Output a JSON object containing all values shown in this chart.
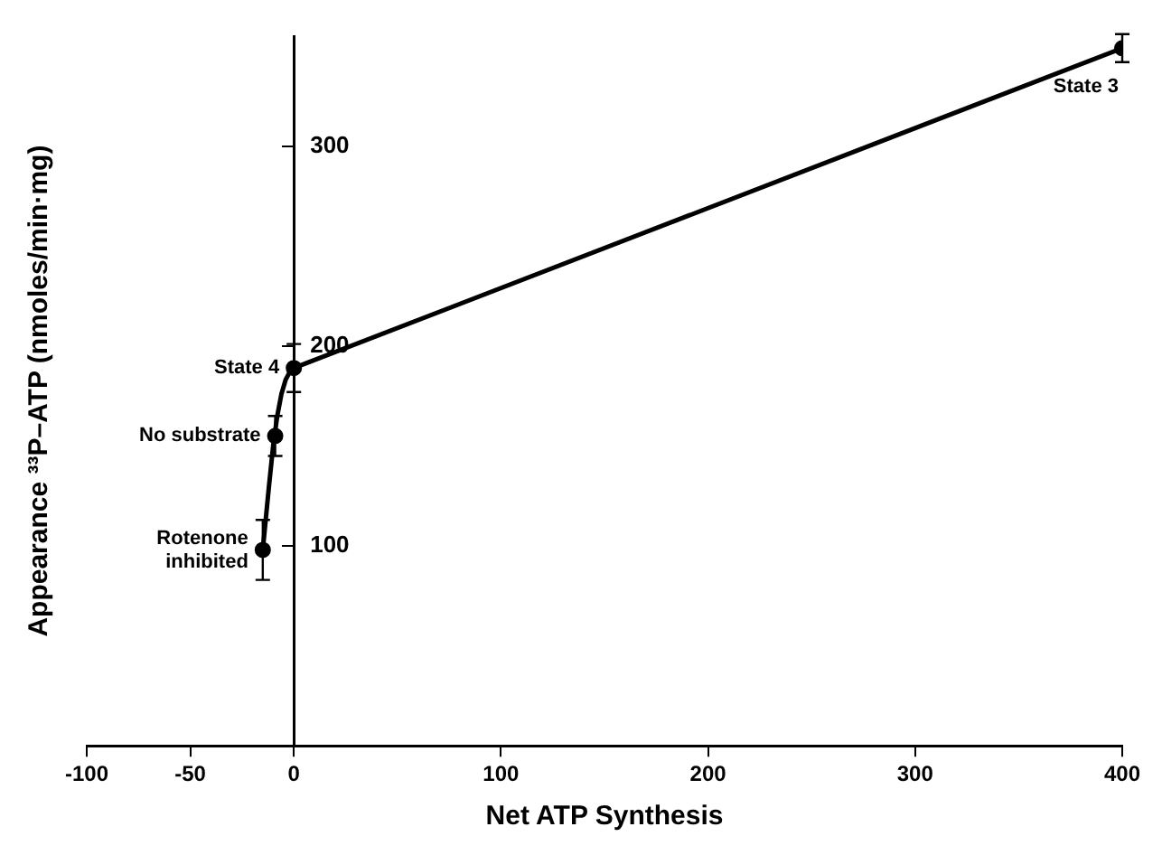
{
  "chart_data": {
    "type": "line",
    "xlabel": "Net ATP Synthesis",
    "ylabel": "Appearance ³³P–ATP (nmoles/min·mg)",
    "xlim": [
      -100,
      400
    ],
    "xticks": [
      -100,
      -50,
      0,
      100,
      200,
      300,
      400
    ],
    "ylim": [
      0,
      355
    ],
    "yticks": [
      100,
      200,
      300
    ],
    "grid": false,
    "legend": false,
    "series": [
      {
        "color": "#000000",
        "marker": "none",
        "x": [
          -15,
          -12,
          -10,
          -8,
          -6,
          -4,
          -2,
          0,
          400
        ],
        "values": [
          98,
          130,
          150,
          165,
          176,
          183,
          187,
          189,
          349
        ]
      },
      {
        "type": "scatter",
        "color": "#000000",
        "marker": "circle",
        "x": [
          -15,
          -9,
          0,
          400
        ],
        "values": [
          98,
          155,
          189,
          349
        ],
        "errors": [
          15,
          10,
          12,
          7
        ]
      }
    ],
    "annotations": [
      {
        "text": "State 3",
        "x": 400,
        "y": 349
      },
      {
        "text": "State 4",
        "x": 0,
        "y": 189
      },
      {
        "text": "No substrate",
        "x": -9,
        "y": 155
      },
      {
        "text": "Rotenone\ninhibited",
        "x": -15,
        "y": 98
      }
    ]
  }
}
